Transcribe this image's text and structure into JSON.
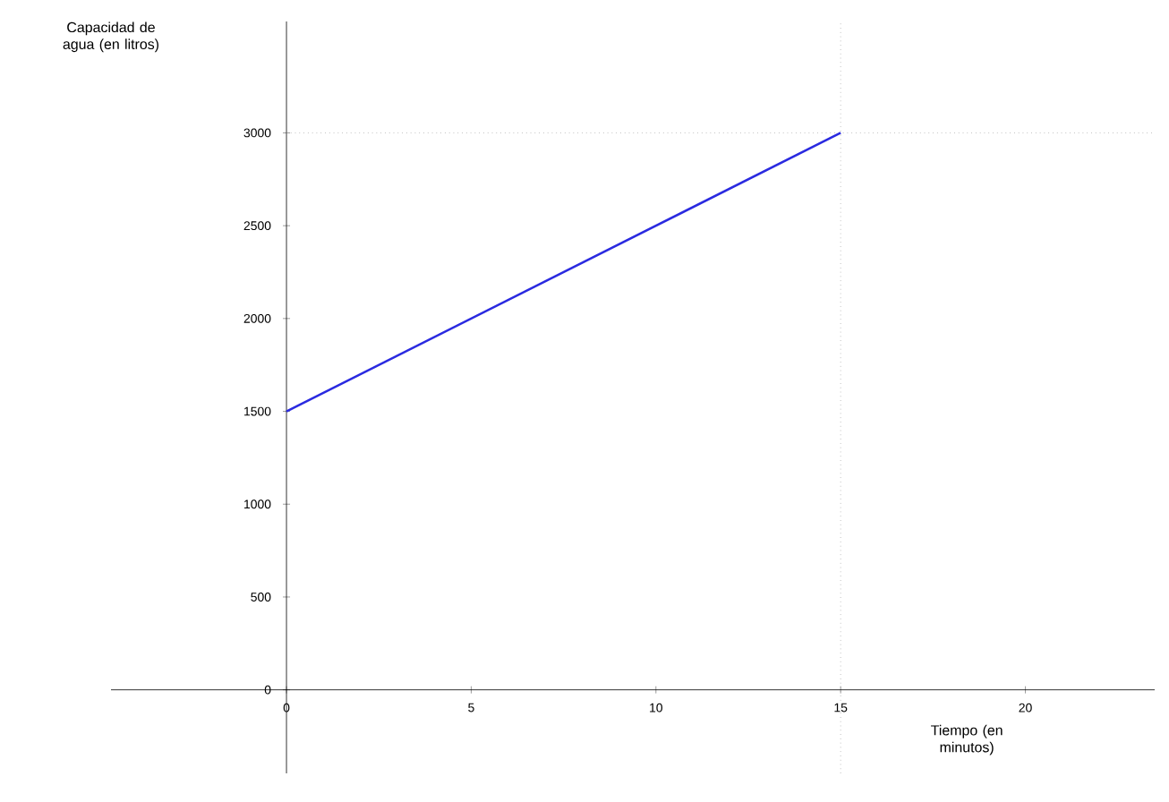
{
  "chart_data": {
    "type": "line",
    "xlabel": "Tiempo (en minutos)",
    "ylabel": "Capacidad de agua (en litros)",
    "x": [
      0,
      15
    ],
    "series": [
      {
        "color": "#2a2ae0",
        "values": [
          1500,
          3000
        ]
      }
    ],
    "xlim": [
      -4.75,
      23.5
    ],
    "ylim": [
      -450,
      3600
    ],
    "xticks": [
      0,
      5,
      10,
      15,
      20
    ],
    "yticks": [
      0,
      500,
      1000,
      1500,
      2000,
      2500,
      3000
    ],
    "ref_lines": [
      {
        "axis": "x",
        "value": 15,
        "color": "#a0a0a0",
        "line_style": "dotted"
      },
      {
        "axis": "y",
        "value": 3000,
        "color": "#a0a0a0",
        "line_style": "dotted"
      }
    ],
    "grid": false,
    "marker": "none",
    "line_style": "solid"
  }
}
